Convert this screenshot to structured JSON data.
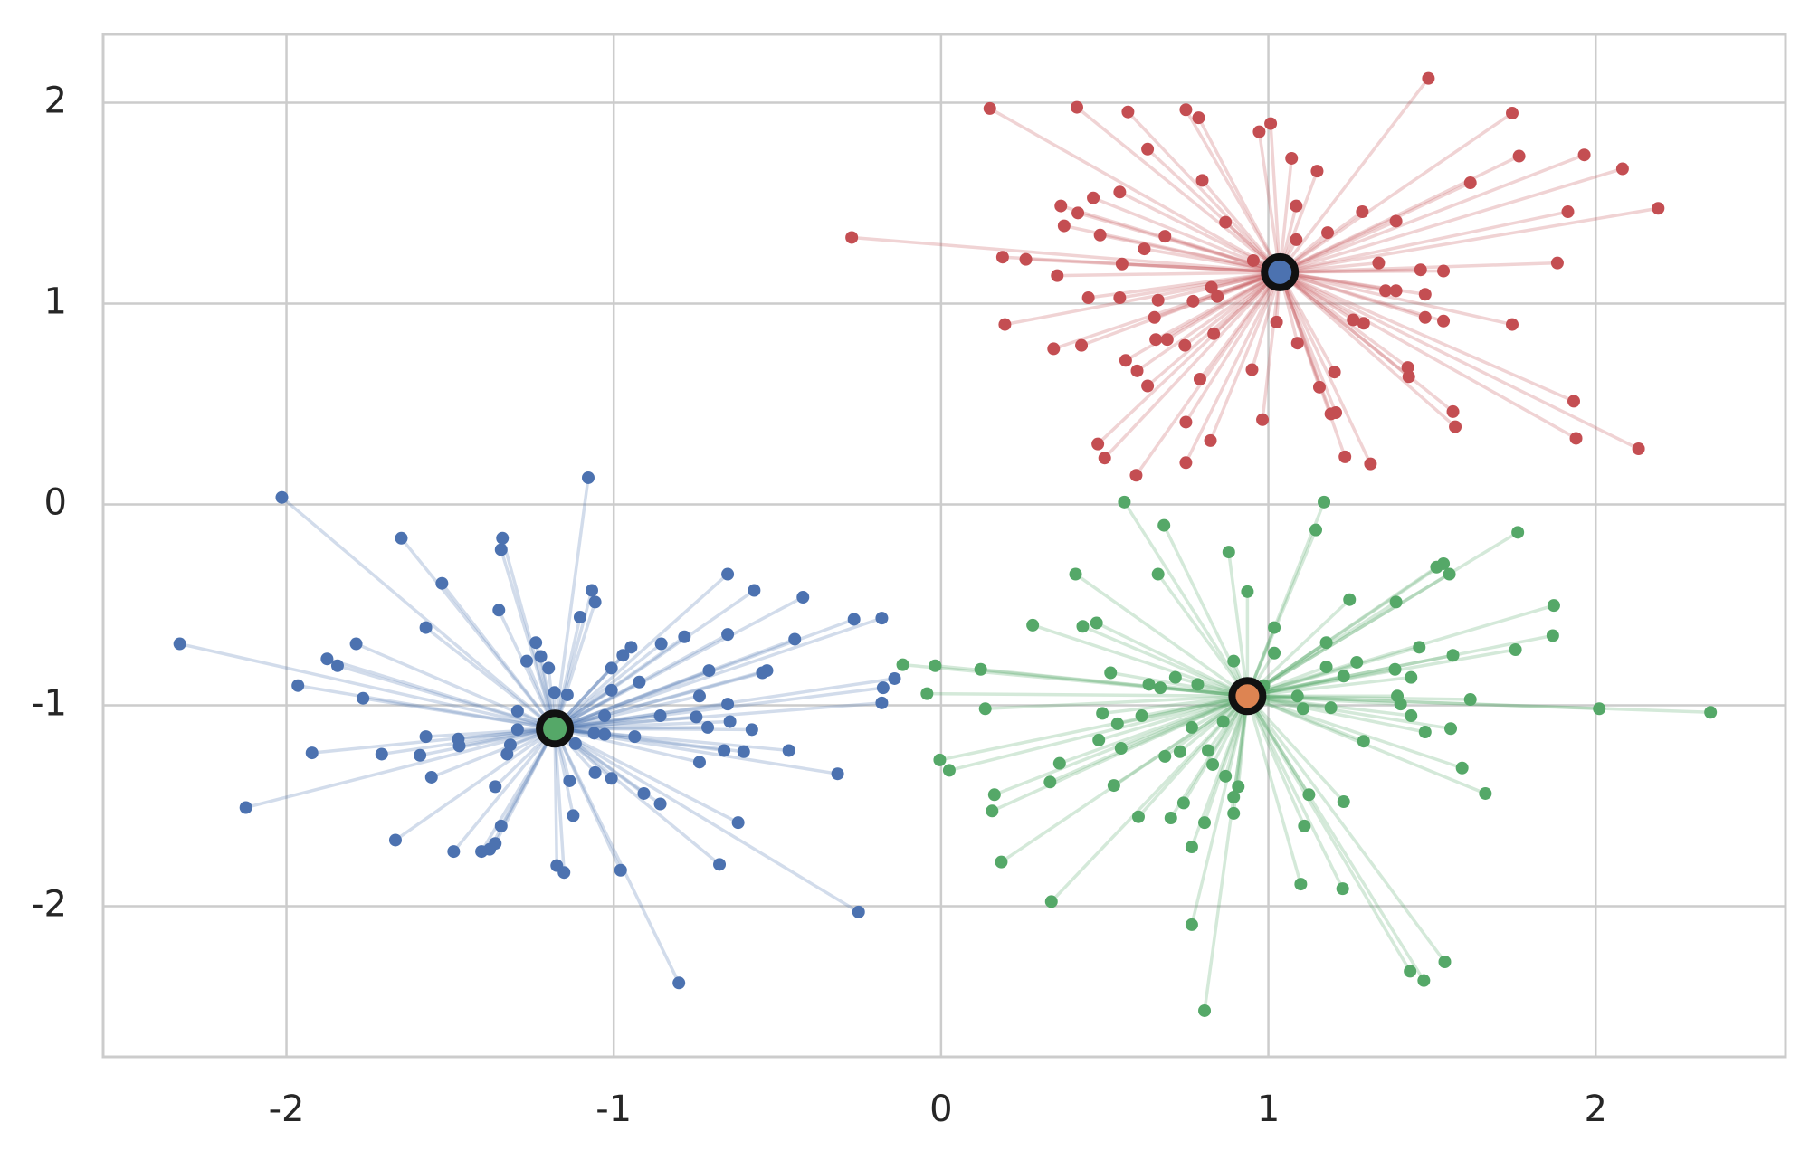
{
  "chart_data": {
    "type": "scatter",
    "xlim": [
      -2.56,
      2.58
    ],
    "ylim": [
      -2.75,
      2.34
    ],
    "xticks": [
      -2,
      -1,
      0,
      1,
      2
    ],
    "yticks": [
      -2,
      -1,
      0,
      1,
      2
    ],
    "grid": true,
    "series": [
      {
        "color": "#c44e52",
        "center": {
          "x": 1.035,
          "y": 1.156,
          "color": "#4c72b0"
        },
        "x": [
          1.489,
          0.149,
          0.415,
          0.571,
          0.748,
          0.787,
          1.007,
          0.972,
          1.745,
          0.631,
          1.071,
          1.766,
          1.965,
          1.149,
          2.082,
          0.798,
          1.617,
          0.546,
          0.465,
          0.366,
          0.418,
          0.376,
          1.085,
          1.287,
          1.915,
          2.191,
          0.869,
          1.39,
          -0.273,
          0.486,
          0.684,
          1.181,
          1.085,
          0.621,
          0.188,
          0.259,
          0.553,
          0.954,
          1.337,
          1.465,
          1.883,
          1.535,
          0.355,
          0.826,
          0.844,
          0.45,
          0.546,
          0.663,
          0.77,
          1.358,
          1.39,
          1.479,
          0.652,
          1.259,
          1.291,
          1.479,
          1.535,
          1.745,
          0.195,
          1.025,
          0.833,
          0.656,
          0.691,
          0.745,
          0.344,
          0.429,
          1.089,
          0.564,
          0.599,
          0.631,
          0.791,
          0.95,
          1.202,
          1.156,
          1.426,
          1.429,
          1.191,
          1.206,
          0.748,
          0.982,
          1.933,
          1.564,
          1.571,
          0.823,
          0.479,
          1.94,
          2.131,
          0.5,
          1.234,
          0.748,
          1.312,
          0.596
        ],
        "y": [
          2.121,
          1.971,
          1.977,
          1.954,
          1.965,
          1.925,
          1.896,
          1.855,
          1.948,
          1.769,
          1.723,
          1.734,
          1.74,
          1.659,
          1.671,
          1.613,
          1.601,
          1.555,
          1.526,
          1.486,
          1.451,
          1.387,
          1.486,
          1.457,
          1.457,
          1.474,
          1.405,
          1.41,
          1.329,
          1.341,
          1.335,
          1.353,
          1.318,
          1.272,
          1.231,
          1.22,
          1.197,
          1.214,
          1.202,
          1.168,
          1.202,
          1.162,
          1.139,
          1.081,
          1.035,
          1.029,
          1.029,
          1.017,
          1.012,
          1.064,
          1.064,
          1.046,
          0.931,
          0.919,
          0.902,
          0.931,
          0.913,
          0.896,
          0.896,
          0.908,
          0.85,
          0.821,
          0.821,
          0.792,
          0.775,
          0.792,
          0.803,
          0.717,
          0.665,
          0.59,
          0.624,
          0.671,
          0.659,
          0.584,
          0.682,
          0.636,
          0.451,
          0.457,
          0.41,
          0.422,
          0.514,
          0.462,
          0.387,
          0.318,
          0.301,
          0.329,
          0.277,
          0.231,
          0.237,
          0.208,
          0.202,
          0.145
        ]
      },
      {
        "color": "#4c72b0",
        "center": {
          "x": -1.18,
          "y": -1.116,
          "color": "#55a868"
        },
        "x": [
          -1.078,
          -2.014,
          -1.649,
          -1.34,
          -1.344,
          -0.652,
          -1.525,
          -1.067,
          -0.571,
          -1.057,
          -0.422,
          -1.351,
          -1.103,
          -0.266,
          -0.181,
          -1.574,
          -0.652,
          -0.784,
          -0.447,
          -2.326,
          -1.787,
          -1.238,
          -0.947,
          -0.855,
          -0.972,
          -1.876,
          -1.844,
          -1.266,
          -1.223,
          -1.007,
          -1.199,
          -0.709,
          -0.532,
          -0.546,
          -0.142,
          -1.965,
          -0.922,
          -1.007,
          -0.177,
          -1.766,
          -0.738,
          -1.181,
          -1.142,
          -0.181,
          -0.652,
          -1.294,
          -1.028,
          -0.858,
          -0.748,
          -0.645,
          -0.713,
          -1.294,
          -0.578,
          -1.06,
          -1.028,
          -0.936,
          -1.574,
          -1.475,
          -1.472,
          -1.316,
          -1.326,
          -1.922,
          -1.709,
          -1.592,
          -1.117,
          -0.663,
          -0.603,
          -0.465,
          -0.738,
          -1.057,
          -1.007,
          -0.316,
          -1.557,
          -1.135,
          -1.362,
          -0.908,
          -0.858,
          -2.124,
          -1.124,
          -0.62,
          -1.344,
          -1.667,
          -1.362,
          -1.379,
          -1.489,
          -1.404,
          -0.677,
          -1.174,
          -0.979,
          -1.152,
          -0.252,
          -0.801
        ],
        "y": [
          0.133,
          0.035,
          -0.168,
          -0.168,
          -0.225,
          -0.347,
          -0.393,
          -0.428,
          -0.428,
          -0.486,
          -0.462,
          -0.526,
          -0.561,
          -0.572,
          -0.566,
          -0.613,
          -0.647,
          -0.659,
          -0.671,
          -0.694,
          -0.694,
          -0.688,
          -0.711,
          -0.694,
          -0.751,
          -0.769,
          -0.803,
          -0.78,
          -0.757,
          -0.815,
          -0.815,
          -0.827,
          -0.827,
          -0.838,
          -0.867,
          -0.902,
          -0.884,
          -0.925,
          -0.913,
          -0.965,
          -0.954,
          -0.936,
          -0.948,
          -0.988,
          -0.994,
          -1.029,
          -1.052,
          -1.052,
          -1.058,
          -1.081,
          -1.11,
          -1.121,
          -1.121,
          -1.139,
          -1.145,
          -1.156,
          -1.156,
          -1.168,
          -1.202,
          -1.197,
          -1.243,
          -1.237,
          -1.243,
          -1.249,
          -1.191,
          -1.225,
          -1.231,
          -1.225,
          -1.283,
          -1.335,
          -1.364,
          -1.341,
          -1.358,
          -1.376,
          -1.405,
          -1.439,
          -1.491,
          -1.509,
          -1.549,
          -1.584,
          -1.601,
          -1.671,
          -1.688,
          -1.717,
          -1.728,
          -1.728,
          -1.792,
          -1.798,
          -1.821,
          -1.832,
          -2.029,
          -2.382
        ]
      },
      {
        "color": "#55a868",
        "center": {
          "x": 0.936,
          "y": -0.954,
          "color": "#dd8452"
        },
        "x": [
          0.56,
          1.17,
          0.681,
          1.145,
          1.762,
          0.879,
          1.535,
          1.514,
          0.411,
          0.663,
          1.553,
          0.936,
          1.248,
          1.39,
          1.872,
          1.018,
          0.28,
          0.475,
          0.433,
          1.869,
          1.177,
          1.461,
          1.564,
          1.755,
          0.894,
          1.018,
          1.27,
          1.177,
          -0.117,
          -0.018,
          0.121,
          0.518,
          0.716,
          1.23,
          1.387,
          1.436,
          0.635,
          0.67,
          0.784,
          0.986,
          -0.043,
          1.089,
          1.394,
          1.404,
          1.617,
          0.135,
          2.011,
          2.351,
          1.106,
          0.493,
          0.613,
          1.191,
          1.436,
          0.539,
          0.862,
          0.766,
          1.557,
          1.479,
          0.482,
          1.291,
          0.55,
          0.816,
          0.73,
          0.684,
          -0.004,
          0.362,
          0.83,
          0.025,
          0.869,
          1.592,
          0.333,
          0.528,
          0.908,
          0.163,
          1.124,
          1.663,
          0.894,
          0.741,
          1.23,
          0.156,
          0.894,
          0.603,
          0.702,
          0.805,
          1.11,
          0.766,
          0.184,
          1.099,
          1.227,
          0.337,
          0.766,
          1.539,
          1.433,
          1.475,
          0.805
        ],
        "y": [
          0.012,
          0.012,
          -0.104,
          -0.127,
          -0.139,
          -0.237,
          -0.295,
          -0.312,
          -0.347,
          -0.347,
          -0.347,
          -0.434,
          -0.474,
          -0.486,
          -0.503,
          -0.613,
          -0.601,
          -0.59,
          -0.607,
          -0.653,
          -0.688,
          -0.711,
          -0.751,
          -0.723,
          -0.78,
          -0.74,
          -0.786,
          -0.809,
          -0.798,
          -0.803,
          -0.821,
          -0.838,
          -0.861,
          -0.855,
          -0.821,
          -0.861,
          -0.896,
          -0.913,
          -0.896,
          -0.902,
          -0.942,
          -0.954,
          -0.954,
          -0.994,
          -0.971,
          -1.017,
          -1.017,
          -1.035,
          -1.017,
          -1.04,
          -1.052,
          -1.012,
          -1.052,
          -1.092,
          -1.081,
          -1.11,
          -1.116,
          -1.133,
          -1.173,
          -1.179,
          -1.214,
          -1.225,
          -1.231,
          -1.254,
          -1.272,
          -1.289,
          -1.295,
          -1.324,
          -1.353,
          -1.312,
          -1.382,
          -1.399,
          -1.405,
          -1.445,
          -1.445,
          -1.439,
          -1.457,
          -1.486,
          -1.48,
          -1.526,
          -1.538,
          -1.555,
          -1.561,
          -1.584,
          -1.601,
          -1.705,
          -1.78,
          -1.89,
          -1.913,
          -1.977,
          -2.092,
          -2.277,
          -2.324,
          -2.37,
          -2.52
        ]
      }
    ]
  }
}
